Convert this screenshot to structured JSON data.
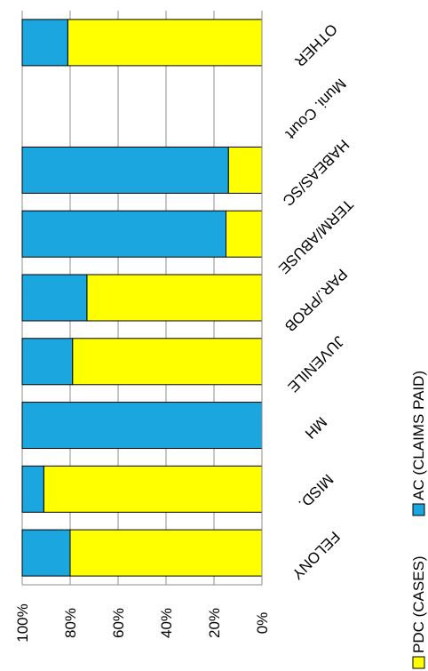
{
  "chart_data": {
    "type": "bar",
    "stacked": true,
    "percent": true,
    "orientation": "horizontal",
    "rotated_view": true,
    "categories": [
      "FELONY",
      "MISD.",
      "MH",
      "JUVENILE",
      "PAR./PROB",
      "TERM/ABUSE",
      "HABEAS/SC",
      "Muni. Court",
      "OTHER"
    ],
    "series": [
      {
        "name": "PDC (CASES)",
        "color": "#FFFF00",
        "values": [
          80,
          91,
          0,
          79,
          73,
          15,
          14,
          null,
          81
        ]
      },
      {
        "name": "AC (CLAIMS PAID)",
        "color": "#1CA6DF",
        "values": [
          20,
          9,
          100,
          21,
          27,
          85,
          86,
          null,
          19
        ]
      }
    ],
    "ticks": [
      "0%",
      "20%",
      "40%",
      "60%",
      "80%",
      "100%"
    ],
    "xlim": [
      0,
      100
    ],
    "grid": true,
    "legend_position": "bottom"
  }
}
